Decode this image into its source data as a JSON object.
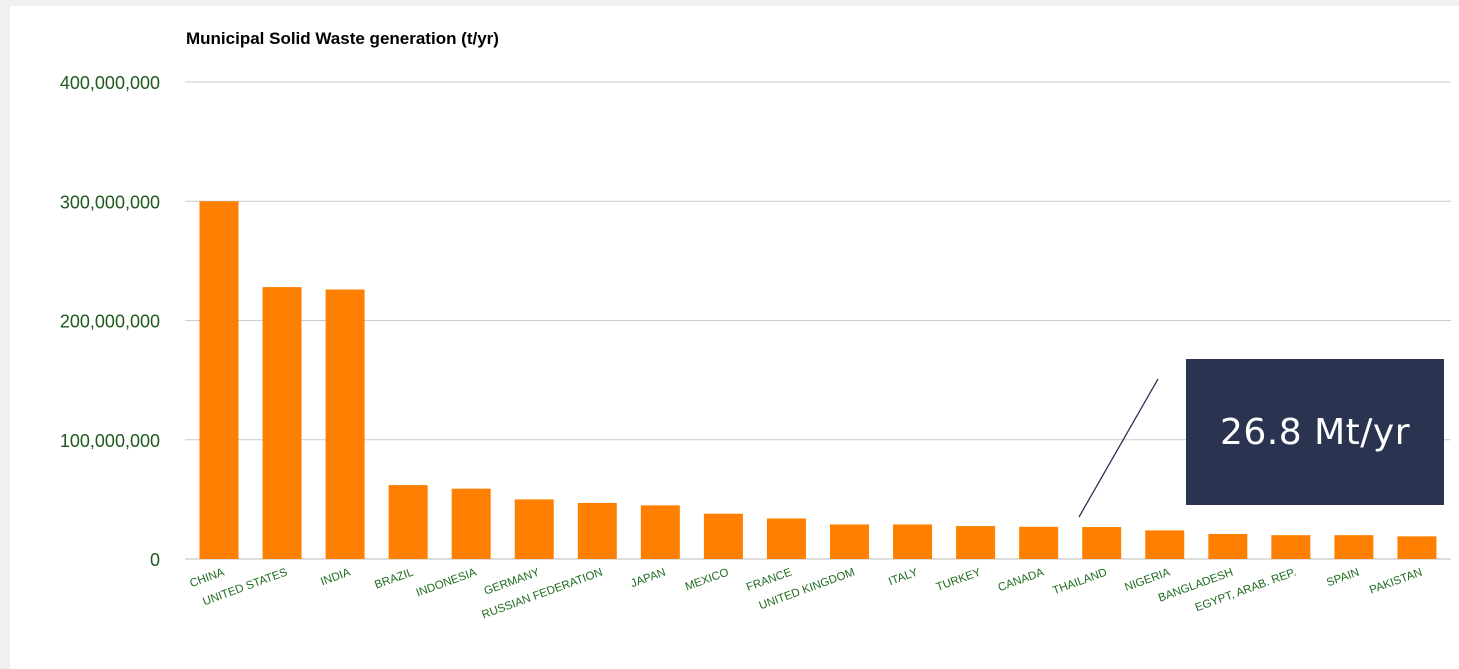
{
  "chart_data": {
    "type": "bar",
    "title": "Municipal Solid Waste generation (t/yr)",
    "xlabel": "",
    "ylabel": "",
    "ylim": [
      0,
      400000000
    ],
    "yticks": [
      0,
      100000000,
      200000000,
      300000000,
      400000000
    ],
    "ytick_labels": [
      "0",
      "100,000,000",
      "200,000,000",
      "300,000,000",
      "400,000,000"
    ],
    "grid": true,
    "legend": "none",
    "categories": [
      "CHINA",
      "UNITED STATES",
      "INDIA",
      "BRAZIL",
      "INDONESIA",
      "GERMANY",
      "RUSSIAN FEDERATION",
      "JAPAN",
      "MEXICO",
      "FRANCE",
      "UNITED KINGDOM",
      "ITALY",
      "TURKEY",
      "CANADA",
      "THAILAND",
      "NIGERIA",
      "BANGLADESH",
      "EGYPT, ARAB. REP.",
      "SPAIN",
      "PAKISTAN"
    ],
    "values": [
      300000000,
      228000000,
      226000000,
      62000000,
      59000000,
      50000000,
      47000000,
      45000000,
      38000000,
      34000000,
      29000000,
      29000000,
      27600000,
      27000000,
      26800000,
      24000000,
      21000000,
      20000000,
      20000000,
      19000000
    ],
    "colors": {
      "bar": "#ff8000",
      "grid": "#cccccc",
      "title": "#000000",
      "tick_text": "#1e5a1e",
      "category_text": "#1e6a1e"
    }
  },
  "callout": {
    "text": "26.8 Mt/yr",
    "target_category": "THAILAND",
    "colors": {
      "background": "#2a3451",
      "text": "#ffffff",
      "line": "#2a3451"
    }
  }
}
